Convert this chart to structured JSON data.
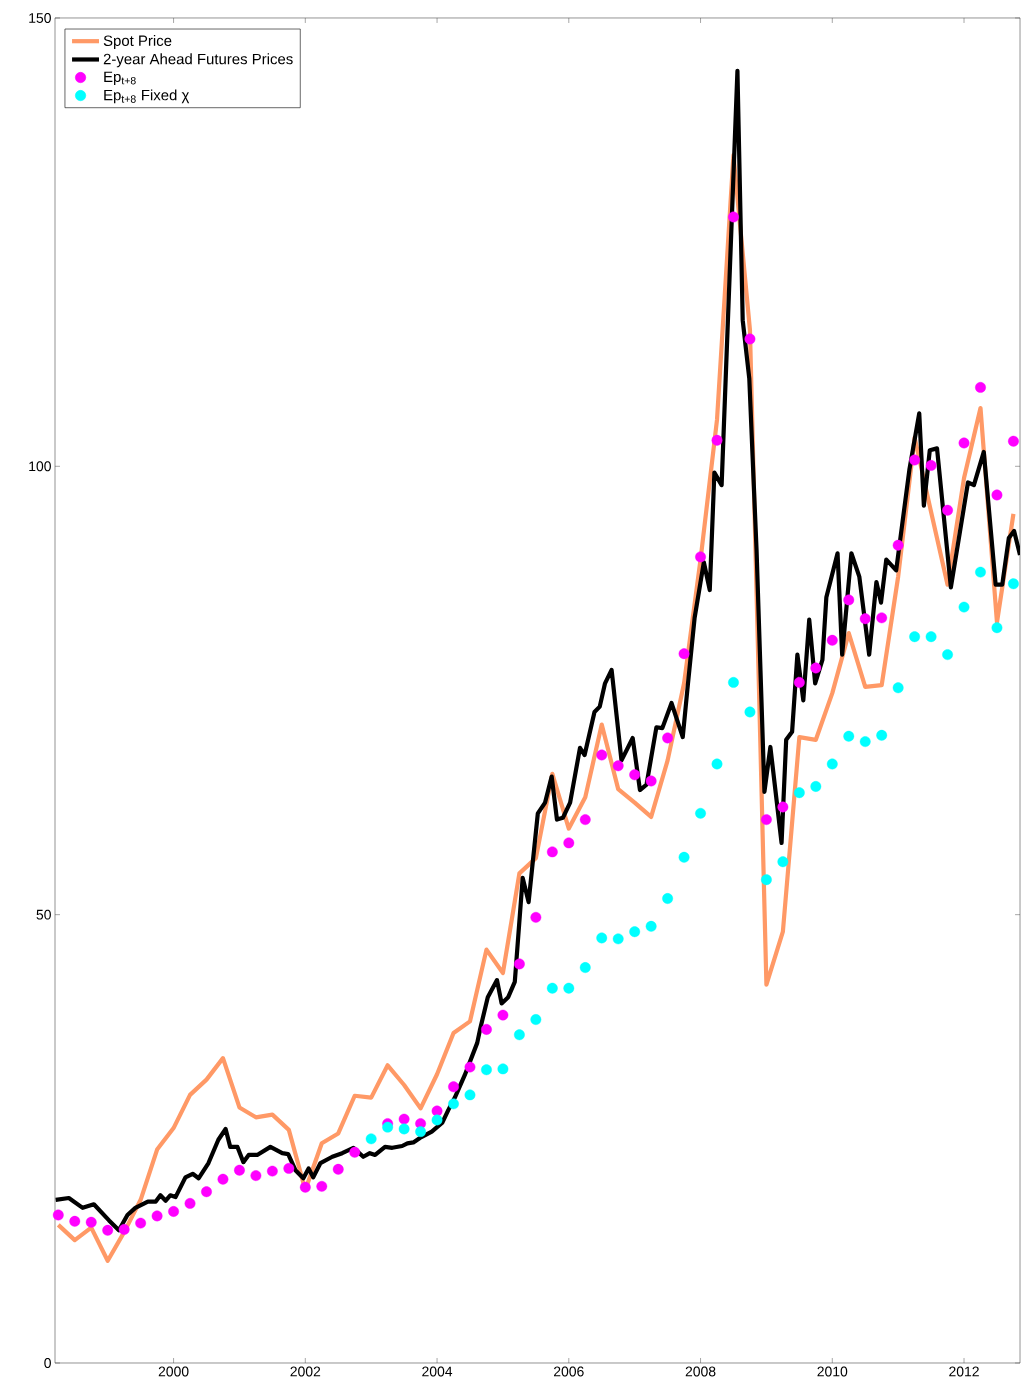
{
  "chart_data": {
    "type": "line",
    "xlim": [
      1998.2,
      2012.85
    ],
    "ylim": [
      0,
      150
    ],
    "xticks": [
      2000,
      2002,
      2004,
      2006,
      2008,
      2010,
      2012
    ],
    "yticks": [
      0,
      50,
      100,
      150
    ],
    "legend": "top left",
    "grid": false,
    "series": [
      {
        "name": "Spot Price",
        "color": "#ff9966",
        "x": [
          1998.25,
          1998.5,
          1998.75,
          1999.0,
          1999.25,
          1999.5,
          1999.75,
          2000.0,
          2000.25,
          2000.5,
          2000.75,
          2001.0,
          2001.25,
          2001.5,
          2001.75,
          2002.0,
          2002.25,
          2002.5,
          2002.75,
          2003.0,
          2003.25,
          2003.5,
          2003.75,
          2004.0,
          2004.25,
          2004.5,
          2004.75,
          2005.0,
          2005.25,
          2005.5,
          2005.75,
          2006.0,
          2006.25,
          2006.5,
          2006.75,
          2007.0,
          2007.25,
          2007.5,
          2007.75,
          2008.0,
          2008.25,
          2008.5,
          2008.75,
          2009.0,
          2009.25,
          2009.5,
          2009.75,
          2010.0,
          2010.25,
          2010.5,
          2010.75,
          2011.0,
          2011.25,
          2011.5,
          2011.75,
          2012.0,
          2012.25,
          2012.5,
          2012.75
        ],
        "values": [
          15.4,
          13.7,
          15.1,
          11.4,
          14.6,
          18.2,
          23.8,
          26.2,
          29.9,
          31.6,
          34.0,
          28.5,
          27.4,
          27.7,
          26.0,
          19.3,
          24.5,
          25.6,
          29.8,
          29.6,
          33.2,
          31.0,
          28.4,
          32.2,
          36.8,
          38.1,
          46.1,
          43.5,
          54.6,
          56.3,
          65.7,
          59.6,
          63.1,
          71.2,
          64.0,
          62.5,
          60.9,
          67.2,
          75.8,
          89.6,
          105.2,
          134.7,
          115.2,
          42.2,
          48.1,
          69.8,
          69.5,
          74.7,
          81.4,
          75.4,
          75.6,
          87.7,
          103.2,
          94.9,
          86.8,
          98.7,
          106.5,
          82.6,
          94.7
        ]
      },
      {
        "name": "2-year Ahead Futures Prices",
        "color": "#000000",
        "x": [
          1998.21,
          1998.41,
          1998.62,
          1998.79,
          1999.02,
          1999.17,
          1999.3,
          1999.42,
          1999.61,
          1999.73,
          1999.8,
          1999.88,
          1999.95,
          2000.03,
          2000.18,
          2000.29,
          2000.38,
          2000.53,
          2000.68,
          2000.79,
          2000.86,
          2000.97,
          2001.06,
          2001.14,
          2001.27,
          2001.47,
          2001.65,
          2001.74,
          2001.85,
          2001.97,
          2002.05,
          2002.12,
          2002.23,
          2002.41,
          2002.56,
          2002.73,
          2002.88,
          2002.98,
          2003.06,
          2003.21,
          2003.32,
          2003.47,
          2003.55,
          2003.64,
          2003.74,
          2003.92,
          2004.08,
          2004.17,
          2004.27,
          2004.42,
          2004.61,
          2004.65,
          2004.77,
          2004.91,
          2004.98,
          2005.08,
          2005.18,
          2005.3,
          2005.39,
          2005.53,
          2005.64,
          2005.74,
          2005.82,
          2005.91,
          2006.02,
          2006.17,
          2006.24,
          2006.39,
          2006.47,
          2006.55,
          2006.65,
          2006.8,
          2006.97,
          2007.08,
          2007.18,
          2007.33,
          2007.42,
          2007.56,
          2007.73,
          2007.8,
          2007.91,
          2008.05,
          2008.14,
          2008.21,
          2008.32,
          2008.56,
          2008.64,
          2008.74,
          2008.85,
          2008.97,
          2009.06,
          2009.23,
          2009.3,
          2009.39,
          2009.47,
          2009.56,
          2009.65,
          2009.74,
          2009.85,
          2009.91,
          2010.08,
          2010.15,
          2010.29,
          2010.41,
          2010.56,
          2010.67,
          2010.74,
          2010.82,
          2010.97,
          2011.17,
          2011.32,
          2011.39,
          2011.48,
          2011.59,
          2011.8,
          2012.06,
          2012.15,
          2012.3,
          2012.48,
          2012.58,
          2012.68,
          2012.76,
          2012.85
        ],
        "values": [
          18.2,
          18.4,
          17.3,
          17.7,
          15.9,
          14.8,
          16.5,
          17.3,
          18.0,
          18.0,
          18.7,
          18.1,
          18.7,
          18.5,
          20.7,
          21.1,
          20.6,
          22.3,
          24.9,
          26.1,
          24.1,
          24.1,
          22.4,
          23.2,
          23.2,
          24.1,
          23.4,
          23.3,
          21.5,
          20.6,
          21.7,
          20.7,
          22.3,
          23.0,
          23.4,
          24.0,
          23.0,
          23.4,
          23.2,
          24.1,
          24.0,
          24.2,
          24.5,
          24.6,
          25.1,
          25.8,
          26.8,
          28.2,
          29.6,
          32.1,
          35.7,
          37.1,
          40.8,
          42.7,
          40.1,
          40.8,
          42.5,
          54.1,
          51.4,
          61.3,
          62.5,
          65.4,
          60.6,
          60.8,
          62.5,
          68.6,
          67.8,
          72.6,
          73.2,
          75.8,
          77.3,
          67.2,
          69.7,
          63.9,
          64.5,
          70.9,
          70.8,
          73.6,
          69.8,
          75.1,
          83.1,
          89.3,
          86.2,
          99.3,
          97.9,
          144.1,
          116.3,
          109.8,
          90.7,
          63.7,
          68.7,
          58.0,
          69.5,
          70.4,
          79.0,
          73.9,
          82.9,
          75.8,
          78.4,
          85.4,
          90.3,
          79.0,
          90.3,
          87.7,
          79.0,
          87.1,
          84.8,
          89.6,
          88.4,
          99.6,
          105.9,
          95.6,
          101.8,
          102.0,
          86.5,
          98.2,
          97.9,
          101.6,
          86.8,
          86.8,
          92.0,
          92.8,
          90.1
        ]
      },
      {
        "name": "Ep$_{t+8}$",
        "type": "scatter",
        "marker": "circle",
        "color": "#ff00ff",
        "x": [
          1998.25,
          1998.5,
          1998.75,
          1999.0,
          1999.25,
          1999.5,
          1999.75,
          2000.0,
          2000.25,
          2000.5,
          2000.75,
          2001.0,
          2001.25,
          2001.5,
          2001.75,
          2002.0,
          2002.25,
          2002.5,
          2002.75,
          2003.0,
          2003.25,
          2003.5,
          2003.75,
          2004.0,
          2004.25,
          2004.5,
          2004.75,
          2005.0,
          2005.25,
          2005.5,
          2005.75,
          2006.0,
          2006.25,
          2006.5,
          2006.75,
          2007.0,
          2007.25,
          2007.5,
          2007.75,
          2008.0,
          2008.25,
          2008.5,
          2008.75,
          2009.0,
          2009.25,
          2009.5,
          2009.75,
          2010.0,
          2010.25,
          2010.5,
          2010.75,
          2011.0,
          2011.25,
          2011.5,
          2011.75,
          2012.0,
          2012.25,
          2012.5,
          2012.75
        ],
        "values": [
          16.5,
          15.8,
          15.7,
          14.8,
          14.9,
          15.6,
          16.4,
          16.9,
          17.8,
          19.1,
          20.5,
          21.5,
          20.9,
          21.4,
          21.7,
          19.6,
          19.7,
          21.6,
          23.5,
          null,
          26.7,
          27.2,
          26.7,
          28.1,
          30.8,
          33.0,
          37.2,
          38.8,
          44.5,
          49.7,
          57.0,
          58.0,
          60.6,
          67.8,
          66.6,
          65.6,
          64.9,
          69.7,
          79.1,
          89.9,
          102.9,
          127.8,
          114.2,
          60.6,
          62.0,
          75.9,
          77.5,
          80.6,
          85.1,
          83.0,
          83.1,
          91.2,
          100.7,
          100.1,
          95.1,
          102.6,
          108.8,
          96.8,
          102.8
        ]
      },
      {
        "name": "Ep$_{t+8}$ Fixed χ",
        "type": "scatter",
        "marker": "circle",
        "color": "#00ffff",
        "x": [
          2003.0,
          2003.25,
          2003.5,
          2003.75,
          2004.0,
          2004.25,
          2004.5,
          2004.75,
          2005.0,
          2005.25,
          2005.5,
          2005.75,
          2006.0,
          2006.25,
          2006.5,
          2006.75,
          2007.0,
          2007.25,
          2007.5,
          2007.75,
          2008.0,
          2008.25,
          2008.5,
          2008.75,
          2009.0,
          2009.25,
          2009.5,
          2009.75,
          2010.0,
          2010.25,
          2010.5,
          2010.75,
          2011.0,
          2011.25,
          2011.5,
          2011.75,
          2012.0,
          2012.25,
          2012.5,
          2012.75
        ],
        "values": [
          25.0,
          26.3,
          26.1,
          25.8,
          27.1,
          28.9,
          29.9,
          32.7,
          32.8,
          36.6,
          38.3,
          41.8,
          41.8,
          44.1,
          47.4,
          47.3,
          48.1,
          48.7,
          51.8,
          56.4,
          61.3,
          66.8,
          75.9,
          72.6,
          53.9,
          55.9,
          63.6,
          64.3,
          66.8,
          69.9,
          69.3,
          70.0,
          75.3,
          81.0,
          81.0,
          79.0,
          84.3,
          88.2,
          82.0,
          86.9
        ]
      }
    ]
  }
}
